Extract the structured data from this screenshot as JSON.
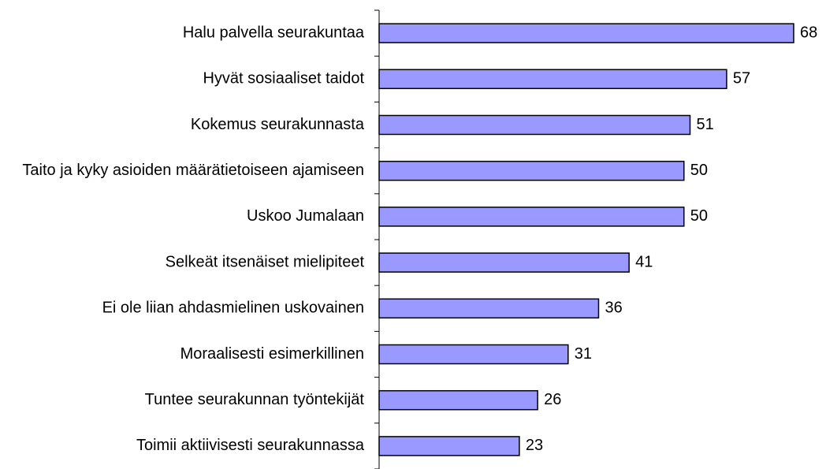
{
  "chart_data": {
    "type": "bar",
    "orientation": "horizontal",
    "categories": [
      "Halu palvella seurakuntaa",
      "Hyvät sosiaaliset taidot",
      "Kokemus seurakunnasta",
      "Taito ja kyky asioiden määrätietoiseen ajamiseen",
      "Uskoo Jumalaan",
      "Selkeät itsenäiset mielipiteet",
      "Ei ole liian ahdasmielinen uskovainen",
      "Moraalisesti esimerkillinen",
      "Tuntee seurakunnan työntekijät",
      "Toimii aktiivisesti seurakunnassa"
    ],
    "values": [
      68,
      57,
      51,
      50,
      50,
      41,
      36,
      31,
      26,
      23
    ],
    "color": "#9999ff"
  }
}
